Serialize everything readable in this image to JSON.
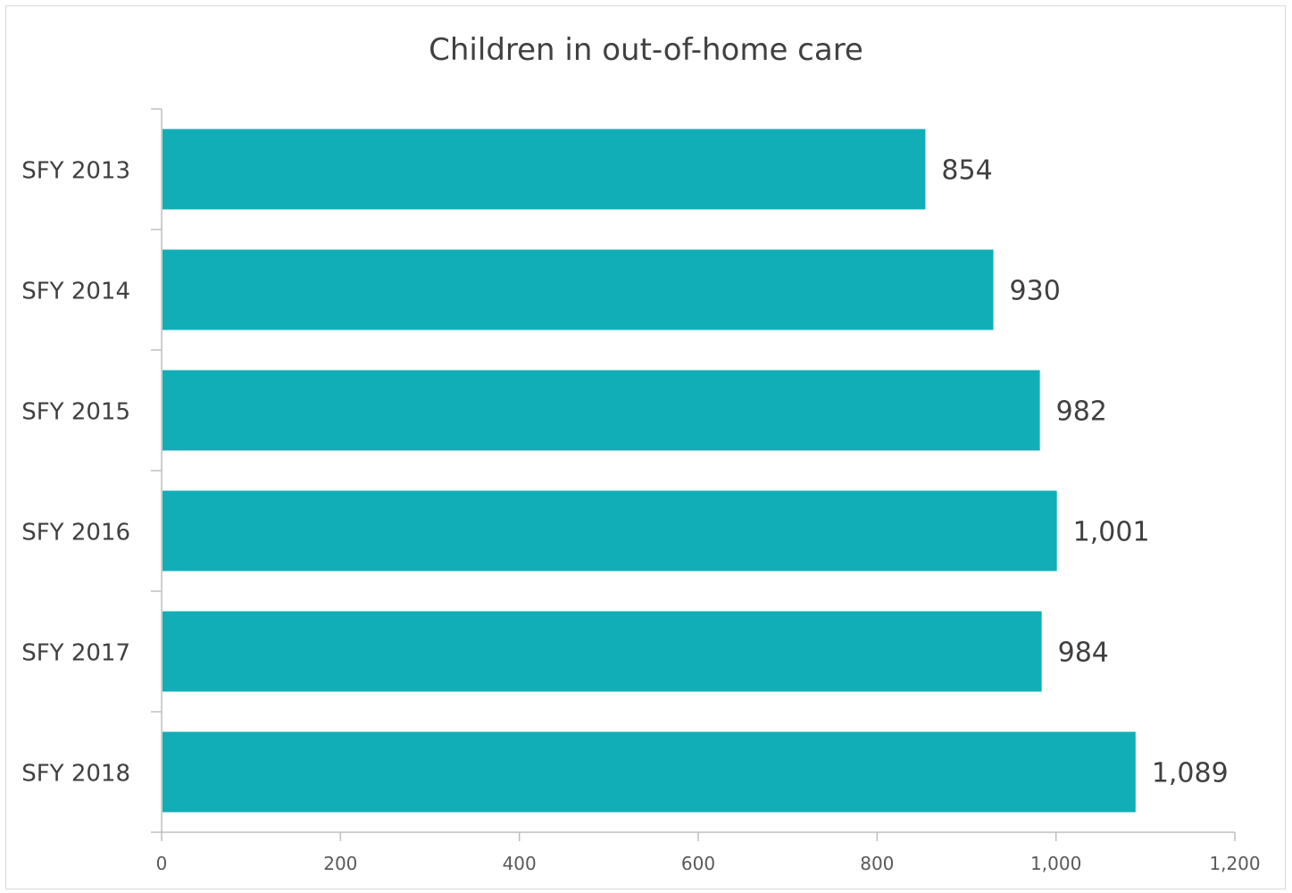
{
  "chart_data": {
    "type": "bar",
    "orientation": "horizontal",
    "title": "Children in out-of-home care",
    "categories": [
      "SFY 2013",
      "SFY 2014",
      "SFY 2015",
      "SFY 2016",
      "SFY 2017",
      "SFY 2018"
    ],
    "values": [
      854,
      930,
      982,
      1001,
      984,
      1089
    ],
    "data_labels": [
      "854",
      "930",
      "982",
      "1,001",
      "984",
      "1,089"
    ],
    "xlim": [
      0,
      1200
    ],
    "x_ticks": [
      0,
      200,
      400,
      600,
      800,
      1000,
      1200
    ],
    "x_tick_labels": [
      "0",
      "200",
      "400",
      "600",
      "800",
      "1,000",
      "1,200"
    ],
    "bar_color": "#12aeb8",
    "grid": false,
    "legend": "none"
  }
}
